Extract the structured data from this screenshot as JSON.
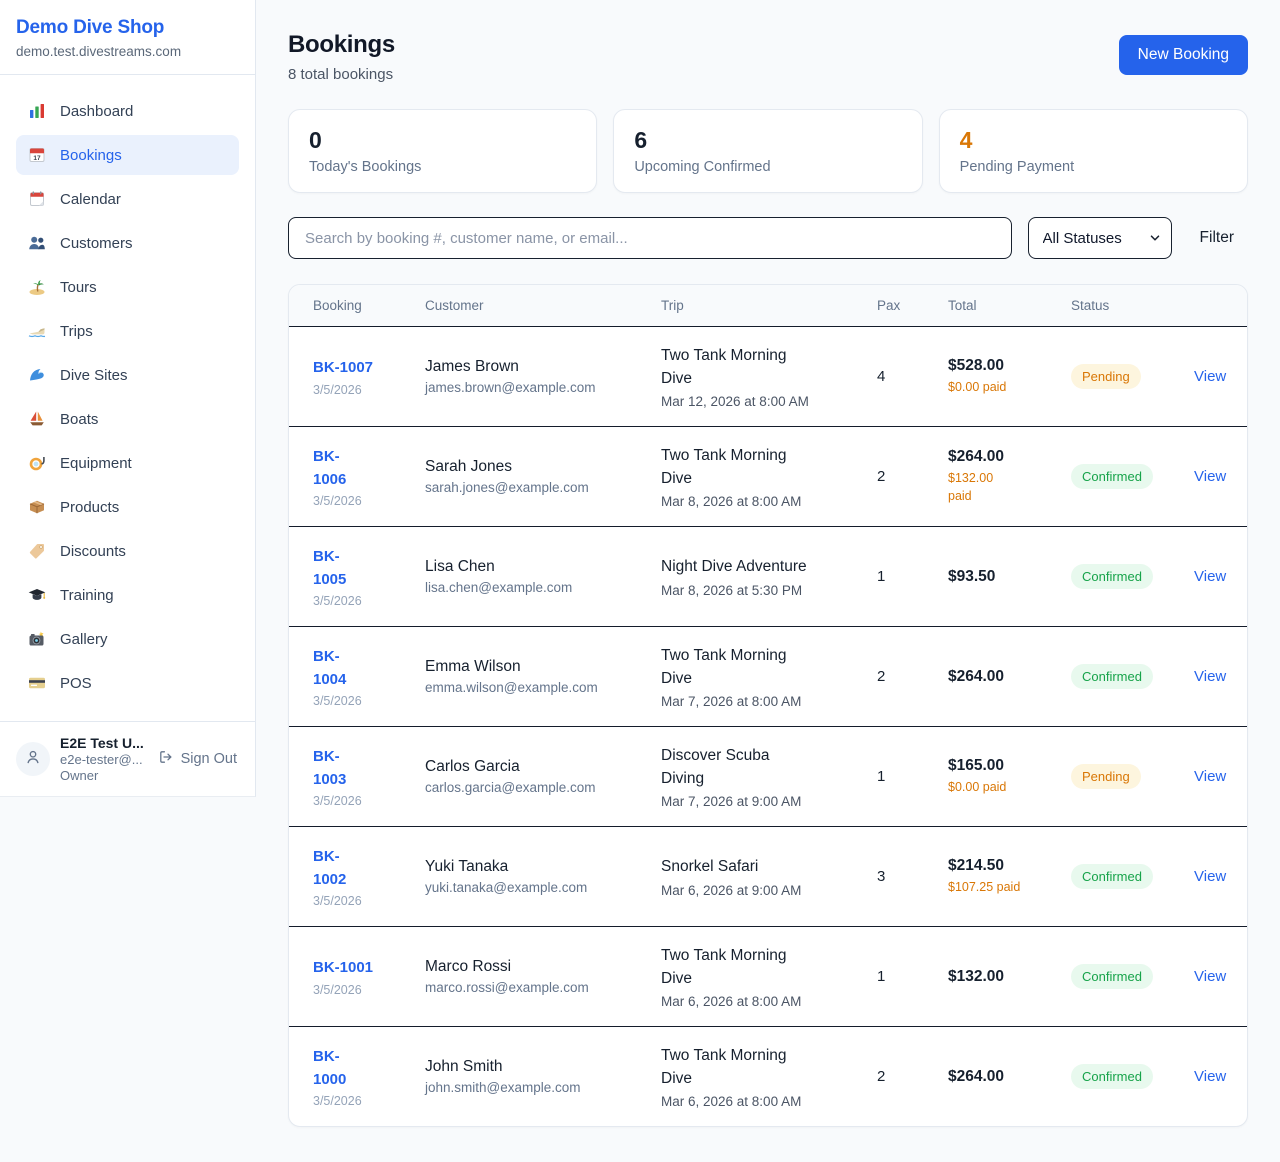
{
  "sidebar": {
    "brand": {
      "name": "Demo Dive Shop",
      "domain": "demo.test.divestreams.com"
    },
    "items": [
      {
        "key": "dashboard",
        "label": "Dashboard",
        "icon": "bar-chart-icon",
        "active": false
      },
      {
        "key": "bookings",
        "label": "Bookings",
        "icon": "calendar-icon",
        "active": true
      },
      {
        "key": "calendar",
        "label": "Calendar",
        "icon": "tearoff-calendar-icon",
        "active": false
      },
      {
        "key": "customers",
        "label": "Customers",
        "icon": "people-icon",
        "active": false
      },
      {
        "key": "tours",
        "label": "Tours",
        "icon": "island-icon",
        "active": false
      },
      {
        "key": "trips",
        "label": "Trips",
        "icon": "speedboat-icon",
        "active": false
      },
      {
        "key": "dive-sites",
        "label": "Dive Sites",
        "icon": "wave-icon",
        "active": false
      },
      {
        "key": "boats",
        "label": "Boats",
        "icon": "sailboat-icon",
        "active": false
      },
      {
        "key": "equipment",
        "label": "Equipment",
        "icon": "dive-mask-icon",
        "active": false
      },
      {
        "key": "products",
        "label": "Products",
        "icon": "package-icon",
        "active": false
      },
      {
        "key": "discounts",
        "label": "Discounts",
        "icon": "tag-icon",
        "active": false
      },
      {
        "key": "training",
        "label": "Training",
        "icon": "graduation-cap-icon",
        "active": false
      },
      {
        "key": "gallery",
        "label": "Gallery",
        "icon": "camera-icon",
        "active": false
      },
      {
        "key": "pos",
        "label": "POS",
        "icon": "credit-card-icon",
        "active": false
      }
    ],
    "user": {
      "name": "E2E Test U...",
      "email": "e2e-tester@...",
      "role": "Owner",
      "sign_out_label": "Sign Out"
    }
  },
  "header": {
    "title": "Bookings",
    "subtitle": "8 total bookings",
    "new_booking_label": "New Booking"
  },
  "stats": [
    {
      "value": "0",
      "label": "Today's Bookings",
      "color": "#16202e"
    },
    {
      "value": "6",
      "label": "Upcoming Confirmed",
      "color": "#16202e"
    },
    {
      "value": "4",
      "label": "Pending Payment",
      "color": "#d97706"
    }
  ],
  "filters": {
    "search_placeholder": "Search by booking #, customer name, or email...",
    "status_selected": "All Statuses",
    "filter_label": "Filter"
  },
  "table": {
    "headers": {
      "booking": "Booking",
      "customer": "Customer",
      "trip": "Trip",
      "pax": "Pax",
      "total": "Total",
      "status": "Status"
    },
    "view_label": "View",
    "rows": [
      {
        "id": "BK-1007",
        "date": "3/5/2026",
        "customer_name": "James Brown",
        "customer_email": "james.brown@example.com",
        "trip_name": "Two Tank Morning\nDive",
        "trip_datetime": "Mar 12, 2026 at 8:00 AM",
        "pax": "4",
        "total": "$528.00",
        "paid": "$0.00 paid",
        "status": "Pending"
      },
      {
        "id": "BK-\n1006",
        "date": "3/5/2026",
        "customer_name": "Sarah Jones",
        "customer_email": "sarah.jones@example.com",
        "trip_name": "Two Tank Morning\nDive",
        "trip_datetime": "Mar 8, 2026 at 8:00 AM",
        "pax": "2",
        "total": "$264.00",
        "paid": "$132.00\npaid",
        "status": "Confirmed"
      },
      {
        "id": "BK-\n1005",
        "date": "3/5/2026",
        "customer_name": "Lisa Chen",
        "customer_email": "lisa.chen@example.com",
        "trip_name": "Night Dive Adventure",
        "trip_datetime": "Mar 8, 2026 at 5:30 PM",
        "pax": "1",
        "total": "$93.50",
        "paid": null,
        "status": "Confirmed"
      },
      {
        "id": "BK-\n1004",
        "date": "3/5/2026",
        "customer_name": "Emma Wilson",
        "customer_email": "emma.wilson@example.com",
        "trip_name": "Two Tank Morning\nDive",
        "trip_datetime": "Mar 7, 2026 at 8:00 AM",
        "pax": "2",
        "total": "$264.00",
        "paid": null,
        "status": "Confirmed"
      },
      {
        "id": "BK-\n1003",
        "date": "3/5/2026",
        "customer_name": "Carlos Garcia",
        "customer_email": "carlos.garcia@example.com",
        "trip_name": "Discover Scuba\nDiving",
        "trip_datetime": "Mar 7, 2026 at 9:00 AM",
        "pax": "1",
        "total": "$165.00",
        "paid": "$0.00 paid",
        "status": "Pending"
      },
      {
        "id": "BK-\n1002",
        "date": "3/5/2026",
        "customer_name": "Yuki Tanaka",
        "customer_email": "yuki.tanaka@example.com",
        "trip_name": "Snorkel Safari",
        "trip_datetime": "Mar 6, 2026 at 9:00 AM",
        "pax": "3",
        "total": "$214.50",
        "paid": "$107.25 paid",
        "status": "Confirmed"
      },
      {
        "id": "BK-1001",
        "date": "3/5/2026",
        "customer_name": "Marco Rossi",
        "customer_email": "marco.rossi@example.com",
        "trip_name": "Two Tank Morning\nDive",
        "trip_datetime": "Mar 6, 2026 at 8:00 AM",
        "pax": "1",
        "total": "$132.00",
        "paid": null,
        "status": "Confirmed"
      },
      {
        "id": "BK-\n1000",
        "date": "3/5/2026",
        "customer_name": "John Smith",
        "customer_email": "john.smith@example.com",
        "trip_name": "Two Tank Morning\nDive",
        "trip_datetime": "Mar 6, 2026 at 8:00 AM",
        "pax": "2",
        "total": "$264.00",
        "paid": null,
        "status": "Confirmed"
      }
    ]
  },
  "colors": {
    "accent_blue": "#2563eb",
    "pending_orange": "#d97706",
    "confirmed_green": "#16a34a",
    "page_background": "#f8fafc"
  }
}
